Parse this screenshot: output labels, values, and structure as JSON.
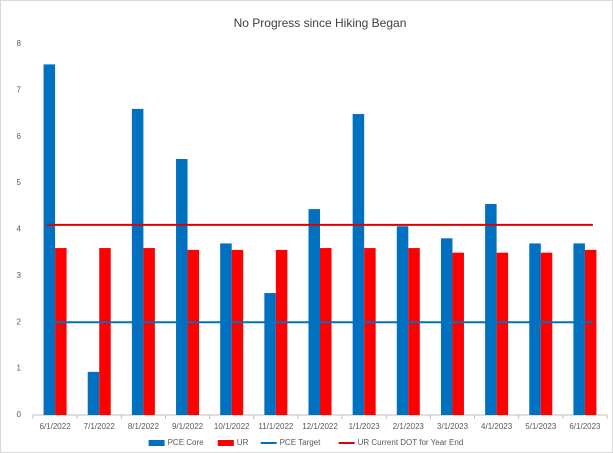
{
  "chart_data": {
    "type": "bar",
    "title": "No Progress since Hiking Began",
    "categories": [
      "6/1/2022",
      "7/1/2022",
      "8/1/2022",
      "9/1/2022",
      "10/1/2022",
      "11/1/2022",
      "12/1/2022",
      "1/1/2023",
      "2/1/2023",
      "3/1/2023",
      "4/1/2023",
      "5/1/2023",
      "6/1/2023"
    ],
    "series": [
      {
        "name": "PCE Core",
        "type": "bar",
        "color": "#0070c0",
        "values": [
          7.56,
          0.93,
          6.6,
          5.52,
          3.7,
          2.63,
          4.44,
          6.49,
          4.07,
          3.81,
          4.55,
          3.7,
          3.7
        ]
      },
      {
        "name": "UR",
        "type": "bar",
        "color": "#ff0000",
        "values": [
          3.6,
          3.6,
          3.6,
          3.56,
          3.56,
          3.56,
          3.6,
          3.6,
          3.6,
          3.5,
          3.5,
          3.5,
          3.56
        ]
      },
      {
        "name": "PCE Target",
        "type": "line",
        "color": "#0070c0",
        "values": [
          2,
          2,
          2,
          2,
          2,
          2,
          2,
          2,
          2,
          2,
          2,
          2,
          2
        ]
      },
      {
        "name": "UR Current DOT for Year End",
        "type": "line",
        "color": "#e00000",
        "values": [
          4.1,
          4.1,
          4.1,
          4.1,
          4.1,
          4.1,
          4.1,
          4.1,
          4.1,
          4.1,
          4.1,
          4.1,
          4.1
        ]
      }
    ],
    "ylim": [
      0,
      8
    ],
    "yticks": [
      0,
      1,
      2,
      3,
      4,
      5,
      6,
      7,
      8
    ],
    "grid": false,
    "legend": "bottom"
  }
}
